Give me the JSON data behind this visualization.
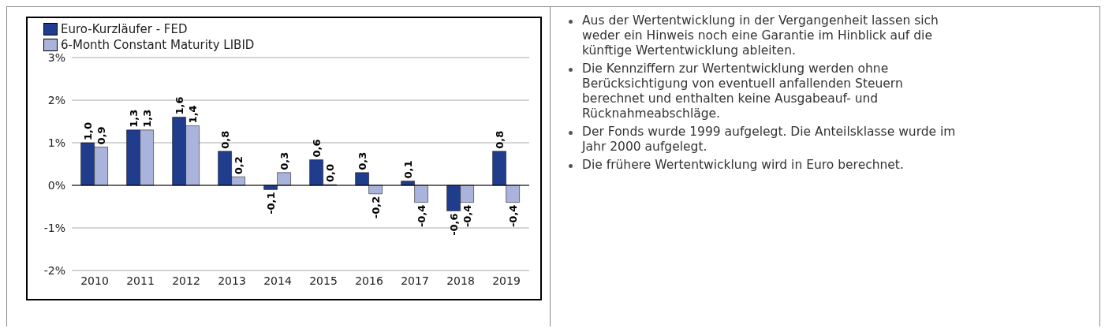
{
  "chart_data": {
    "type": "bar",
    "categories": [
      "2010",
      "2011",
      "2012",
      "2013",
      "2014",
      "2015",
      "2016",
      "2017",
      "2018",
      "2019"
    ],
    "series": [
      {
        "name": "Euro-Kurzläufer - FED",
        "color": "#1f3d8c",
        "values": [
          1.0,
          1.3,
          1.6,
          0.8,
          -0.1,
          0.6,
          0.3,
          0.1,
          -0.6,
          0.8
        ],
        "value_labels": [
          "1,0",
          "1,3",
          "1,6",
          "0,8",
          "-0,1",
          "0,6",
          "0,3",
          "0,1",
          "-0,6",
          "0,8"
        ]
      },
      {
        "name": "6-Month Constant Maturity LIBID",
        "color": "#a9b3db",
        "values": [
          0.9,
          1.3,
          1.4,
          0.2,
          0.3,
          0.0,
          -0.2,
          -0.4,
          -0.4,
          -0.4
        ],
        "value_labels": [
          "0,9",
          "1,3",
          "1,4",
          "0,2",
          "0,3",
          "0,0",
          "-0,2",
          "-0,4",
          "-0,4",
          "-0,4"
        ]
      }
    ],
    "ylim": [
      -2,
      3
    ],
    "yticks": [
      {
        "value": -2,
        "label": "-2%"
      },
      {
        "value": -1,
        "label": "-1%"
      },
      {
        "value": 0,
        "label": "0%"
      },
      {
        "value": 1,
        "label": "1%"
      },
      {
        "value": 2,
        "label": "2%"
      },
      {
        "value": 3,
        "label": "3%"
      }
    ],
    "grid": "y",
    "legend": "top left",
    "annotations": [
      "Aus der Wertentwicklung in der Vergangenheit lassen sich weder ein Hinweis noch eine Garantie im Hinblick auf die künftige Wertentwicklung ableiten.",
      "Die Kennziffern zur Wertentwicklung werden ohne Berücksichtigung von eventuell anfallenden Steuern berechnet und enthalten keine Ausgabeauf- und Rücknahmeabschläge.",
      "Der Fonds wurde 1999 aufgelegt.  Die Anteilsklasse wurde im Jahr 2000 aufgelegt.",
      "Die frühere Wertentwicklung wird in Euro berechnet."
    ]
  }
}
